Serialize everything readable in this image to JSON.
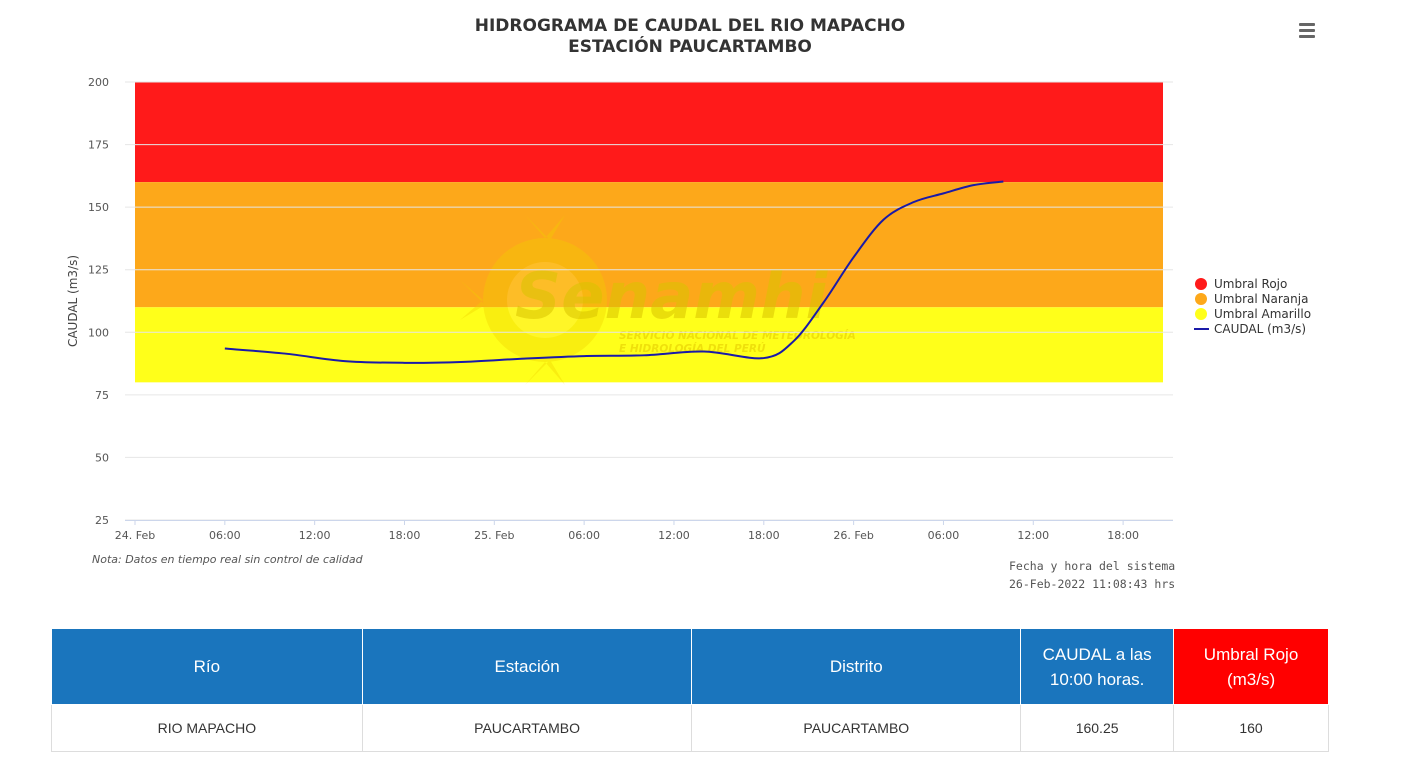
{
  "chart_data": {
    "type": "line",
    "title": "HIDROGRAMA DE CAUDAL DEL RIO MAPACHO",
    "subtitle": "ESTACIÓN PAUCARTAMBO",
    "ylabel": "CAUDAL (m3/s)",
    "xlabel": "",
    "ylim": [
      25,
      200
    ],
    "yticks": [
      200,
      175,
      150,
      125,
      100,
      75,
      50,
      25
    ],
    "x_axis": {
      "unit": "hours",
      "range": [
        "2022-02-24 00:00",
        "2022-02-26 22:00"
      ],
      "tick_labels": [
        "24. Feb",
        "06:00",
        "12:00",
        "18:00",
        "25. Feb",
        "06:00",
        "12:00",
        "18:00",
        "26. Feb",
        "06:00",
        "12:00",
        "18:00"
      ]
    },
    "grid": true,
    "legend_position": "right",
    "bands": [
      {
        "name": "Umbral Rojo",
        "from": 160,
        "to": 200,
        "color": "#ff1a1a"
      },
      {
        "name": "Umbral Naranja",
        "from": 110,
        "to": 160,
        "color": "#fda81a"
      },
      {
        "name": "Umbral Amarillo",
        "from": 80,
        "to": 110,
        "color": "#ffff1a"
      }
    ],
    "series": [
      {
        "name": "CAUDAL (m3/s)",
        "color": "#1a1aa8",
        "x": [
          "2022-02-24 06:00",
          "2022-02-24 10:00",
          "2022-02-24 14:00",
          "2022-02-24 18:00",
          "2022-02-24 22:00",
          "2022-02-25 02:00",
          "2022-02-25 06:00",
          "2022-02-25 10:00",
          "2022-02-25 14:00",
          "2022-02-25 18:00",
          "2022-02-25 20:00",
          "2022-02-25 22:00",
          "2022-02-26 00:00",
          "2022-02-26 02:00",
          "2022-02-26 04:00",
          "2022-02-26 06:00",
          "2022-02-26 08:00",
          "2022-02-26 10:00"
        ],
        "y": [
          93.5,
          91.5,
          88.5,
          87.8,
          88.2,
          89.5,
          90.5,
          90.8,
          92.3,
          89.7,
          96.5,
          112,
          130,
          145,
          152,
          155.5,
          158.8,
          160.25
        ]
      }
    ],
    "legend": [
      {
        "label": "Umbral Rojo",
        "color": "#ff1a1a",
        "symbol": "dot"
      },
      {
        "label": "Umbral Naranja",
        "color": "#fda81a",
        "symbol": "dot"
      },
      {
        "label": "Umbral Amarillo",
        "color": "#ffff1a",
        "symbol": "dot"
      },
      {
        "label": "CAUDAL (m3/s)",
        "color": "#1a1aa8",
        "symbol": "line"
      }
    ],
    "note": "Nota: Datos en tiempo real sin control de calidad",
    "system_time_label": "Fecha y hora del sistema",
    "system_time_value": "26-Feb-2022 11:08:43 hrs",
    "watermark": {
      "logo_text": "Senamhi",
      "line1": "SERVICIO NACIONAL DE METEOROLOGÍA",
      "line2": "E HIDROLOGÍA DEL PERÚ"
    }
  },
  "menu": {
    "icon": "hamburger-menu-icon"
  },
  "table": {
    "headers": [
      "Río",
      "Estación",
      "Distrito",
      "CAUDAL a las 10:00 horas.",
      "Umbral Rojo (m3/s)"
    ],
    "header_lines": [
      [
        "Río"
      ],
      [
        "Estación"
      ],
      [
        "Distrito"
      ],
      [
        "CAUDAL a las",
        "10:00 horas."
      ],
      [
        "Umbral Rojo",
        "(m3/s)"
      ]
    ],
    "rows": [
      [
        "RIO MAPACHO",
        "PAUCARTAMBO",
        "PAUCARTAMBO",
        "160.25",
        "160"
      ]
    ]
  }
}
